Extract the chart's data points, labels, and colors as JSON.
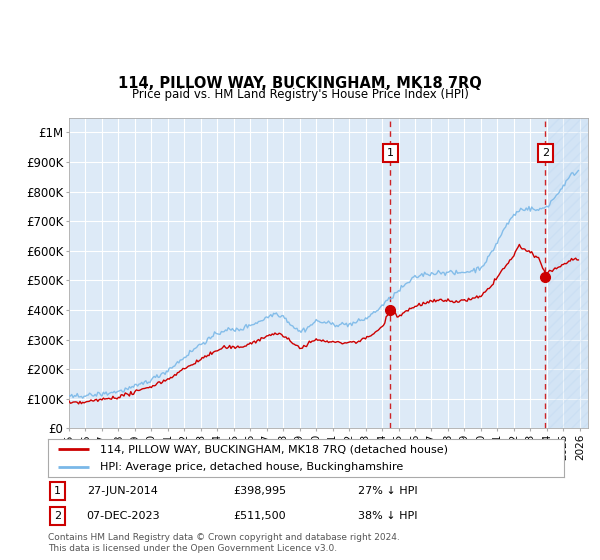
{
  "title": "114, PILLOW WAY, BUCKINGHAM, MK18 7RQ",
  "subtitle": "Price paid vs. HM Land Registry's House Price Index (HPI)",
  "ylim": [
    0,
    1050000
  ],
  "xlim_start": 1995.0,
  "xlim_end": 2026.5,
  "background_color": "#ffffff",
  "plot_bg_color": "#ddeaf7",
  "grid_color": "#ffffff",
  "hpi_color": "#7ab8e8",
  "price_color": "#cc0000",
  "marker1_x": 2014.5,
  "marker2_x": 2023.92,
  "marker1_price": 398995,
  "marker2_price": 511500,
  "legend_entry1": "114, PILLOW WAY, BUCKINGHAM, MK18 7RQ (detached house)",
  "legend_entry2": "HPI: Average price, detached house, Buckinghamshire",
  "footnote": "Contains HM Land Registry data © Crown copyright and database right 2024.\nThis data is licensed under the Open Government Licence v3.0.",
  "hatch_start": 2024.08,
  "yticks": [
    0,
    100000,
    200000,
    300000,
    400000,
    500000,
    600000,
    700000,
    800000,
    900000,
    1000000
  ],
  "ytick_labels": [
    "£0",
    "£100K",
    "£200K",
    "£300K",
    "£400K",
    "£500K",
    "£600K",
    "£700K",
    "£800K",
    "£900K",
    "£1M"
  ]
}
